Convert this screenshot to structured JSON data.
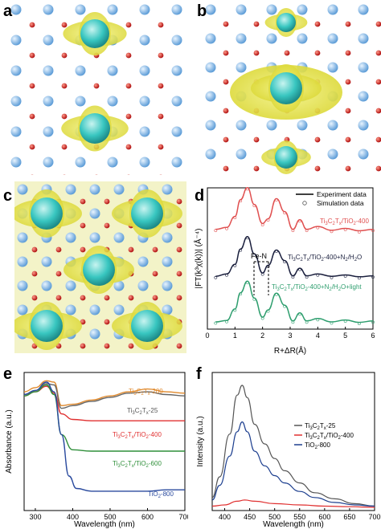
{
  "panels": {
    "a": {
      "label": "a"
    },
    "b": {
      "label": "b"
    },
    "c": {
      "label": "c"
    },
    "d": {
      "label": "d"
    },
    "e": {
      "label": "e"
    },
    "f": {
      "label": "f"
    }
  },
  "chart_data": [
    {
      "panel": "d",
      "type": "line",
      "xlabel": "R+ΔR(Å)",
      "ylabel": "|FT(k³χ(k))| (Å⁻⁴)",
      "xlim": [
        0,
        6
      ],
      "xticks": [
        "0",
        "1",
        "2",
        "3",
        "4",
        "5",
        "6"
      ],
      "legend": {
        "placement": "top-right",
        "entries": [
          "Experiment data",
          "Simulation data"
        ]
      },
      "annotation": "Fe-N",
      "series": [
        {
          "name": "Ti3C2Tx/TiO2-400",
          "color": "#e05050",
          "offset": 2.0,
          "x": [
            0.3,
            0.7,
            1.0,
            1.2,
            1.45,
            1.7,
            2.0,
            2.2,
            2.5,
            2.8,
            3.1,
            3.35,
            3.6,
            4.0,
            4.5,
            5.0,
            5.5,
            6.0
          ],
          "y": [
            0.08,
            0.12,
            0.35,
            0.7,
            0.95,
            0.6,
            0.2,
            0.3,
            0.72,
            0.45,
            0.08,
            0.28,
            0.08,
            0.14,
            0.06,
            0.1,
            0.05,
            0.08
          ]
        },
        {
          "name": "Ti3C2Tx/TiO2-400+N2/H2O",
          "color": "#1a1f3d",
          "offset": 1.0,
          "x": [
            0.3,
            0.7,
            1.0,
            1.2,
            1.45,
            1.7,
            2.0,
            2.2,
            2.5,
            2.8,
            3.1,
            3.35,
            3.6,
            4.0,
            4.5,
            5.0,
            5.5,
            6.0
          ],
          "y": [
            0.05,
            0.1,
            0.3,
            0.62,
            0.88,
            0.52,
            0.12,
            0.28,
            0.6,
            0.38,
            0.06,
            0.22,
            0.06,
            0.1,
            0.05,
            0.08,
            0.04,
            0.06
          ]
        },
        {
          "name": "Ti3C2Tx/TiO2-400+N2/H2O+light",
          "color": "#2e9e6e",
          "offset": 0.0,
          "x": [
            0.3,
            0.7,
            1.0,
            1.2,
            1.45,
            1.7,
            2.0,
            2.2,
            2.5,
            2.8,
            3.1,
            3.35,
            3.6,
            4.0,
            4.5,
            5.0,
            5.5,
            6.0
          ],
          "y": [
            0.05,
            0.08,
            0.32,
            0.66,
            0.9,
            0.55,
            0.15,
            0.3,
            0.65,
            0.4,
            0.07,
            0.24,
            0.07,
            0.12,
            0.05,
            0.09,
            0.04,
            0.07
          ]
        }
      ],
      "series_labels": [
        "Ti3C2Tx/TiO2-400",
        "Ti3C2Tx/TiO2-400+N2/H2O",
        "Ti3C2Tx/TiO2-400+N2/H2O+light"
      ]
    },
    {
      "panel": "e",
      "type": "line",
      "xlabel": "Wavelength (nm)",
      "ylabel": "Absorbance (a.u.)",
      "xlim": [
        270,
        700
      ],
      "xticks": [
        "300",
        "400",
        "500",
        "600",
        "700"
      ],
      "series": [
        {
          "name": "Ti3C2Tx-200",
          "color": "#e08a2e",
          "x": [
            270,
            300,
            330,
            350,
            370,
            400,
            450,
            500,
            550,
            600,
            650,
            700
          ],
          "y": [
            0.86,
            0.89,
            0.94,
            0.93,
            0.76,
            0.77,
            0.8,
            0.83,
            0.86,
            0.88,
            0.86,
            0.85
          ]
        },
        {
          "name": "Ti3C2Tx-25",
          "color": "#666666",
          "x": [
            270,
            300,
            330,
            350,
            370,
            400,
            450,
            500,
            550,
            600,
            650,
            700
          ],
          "y": [
            0.84,
            0.87,
            0.92,
            0.91,
            0.74,
            0.76,
            0.79,
            0.82,
            0.85,
            0.86,
            0.84,
            0.83
          ]
        },
        {
          "name": "Ti3C2Tx/TiO2-400",
          "color": "#e03030",
          "x": [
            270,
            300,
            330,
            350,
            370,
            400,
            450,
            500,
            550,
            600,
            650,
            700
          ],
          "y": [
            0.83,
            0.86,
            0.9,
            0.85,
            0.7,
            0.66,
            0.65,
            0.65,
            0.65,
            0.65,
            0.65,
            0.65
          ]
        },
        {
          "name": "Ti3C2Tx/TiO2-600",
          "color": "#2f8f3a",
          "x": [
            270,
            300,
            330,
            350,
            370,
            400,
            450,
            500,
            550,
            600,
            650,
            700
          ],
          "y": [
            0.83,
            0.86,
            0.91,
            0.84,
            0.55,
            0.44,
            0.43,
            0.43,
            0.43,
            0.43,
            0.43,
            0.43
          ]
        },
        {
          "name": "TiO2-800",
          "color": "#2a4a9e",
          "x": [
            270,
            300,
            330,
            350,
            370,
            390,
            410,
            450,
            500,
            550,
            600,
            650,
            700
          ],
          "y": [
            0.84,
            0.87,
            0.93,
            0.86,
            0.55,
            0.25,
            0.16,
            0.14,
            0.14,
            0.14,
            0.14,
            0.15,
            0.15
          ]
        }
      ],
      "series_labels": [
        "Ti3C2Tx-200",
        "Ti3C2Tx-25",
        "Ti3C2Tx/TiO2-400",
        "Ti3C2Tx/TiO2-600",
        "TiO2-800"
      ],
      "ylim": [
        0,
        1
      ]
    },
    {
      "panel": "f",
      "type": "line",
      "xlabel": "Wavelength (nm)",
      "ylabel": "Intensity (a.u.)",
      "xlim": [
        375,
        700
      ],
      "xticks": [
        "400",
        "450",
        "500",
        "550",
        "600",
        "650",
        "700"
      ],
      "legend": {
        "placement": "top-right",
        "entries": [
          "Ti3C2Tx-25",
          "Ti3C2Tx/TiO2-400",
          "TiO2-800"
        ]
      },
      "series": [
        {
          "name": "Ti3C2Tx-25",
          "color": "#555555",
          "x": [
            375,
            390,
            410,
            425,
            435,
            445,
            460,
            480,
            500,
            520,
            550,
            580,
            620,
            660,
            700
          ],
          "y": [
            0.08,
            0.25,
            0.6,
            0.92,
            1.0,
            0.9,
            0.68,
            0.52,
            0.4,
            0.3,
            0.2,
            0.12,
            0.07,
            0.03,
            0.01
          ]
        },
        {
          "name": "Ti3C2Tx/TiO2-400",
          "color": "#e03030",
          "x": [
            375,
            400,
            425,
            440,
            460,
            500,
            550,
            600,
            650,
            700
          ],
          "y": [
            0.01,
            0.02,
            0.05,
            0.06,
            0.05,
            0.03,
            0.02,
            0.01,
            0.005,
            0.0
          ]
        },
        {
          "name": "TiO2-800",
          "color": "#1d3f8f",
          "x": [
            375,
            390,
            410,
            425,
            435,
            445,
            460,
            480,
            500,
            520,
            550,
            580,
            620,
            660,
            700
          ],
          "y": [
            0.06,
            0.18,
            0.42,
            0.62,
            0.7,
            0.62,
            0.46,
            0.34,
            0.26,
            0.2,
            0.13,
            0.08,
            0.04,
            0.02,
            0.01
          ]
        }
      ]
    }
  ]
}
